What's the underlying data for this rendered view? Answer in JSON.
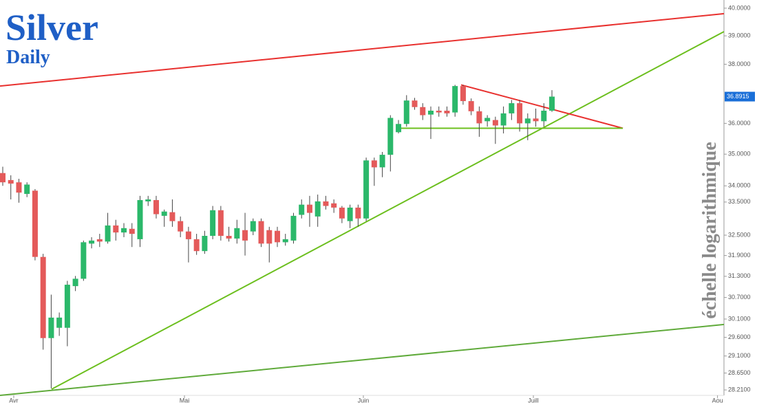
{
  "chart_data": {
    "type": "candlestick",
    "title": "Silver",
    "subtitle": "Daily",
    "annotation": "échelle logarithmique",
    "log_scale": true,
    "up_color": "#2bb86a",
    "down_color": "#e45a5a",
    "x": [
      0,
      1,
      2,
      3,
      4,
      5,
      6,
      7,
      8,
      9,
      10,
      11,
      12,
      13,
      14,
      15,
      16,
      17,
      18,
      19,
      20,
      21,
      22,
      23,
      24,
      25,
      26,
      27,
      28,
      29,
      30,
      31,
      32,
      33,
      34,
      35,
      36,
      37,
      38,
      39,
      40,
      41,
      42,
      43,
      44,
      45,
      46,
      47,
      48,
      49,
      50,
      51,
      52,
      53,
      54,
      55,
      56,
      57,
      58,
      59,
      60,
      61,
      62,
      63,
      64,
      65,
      66,
      67,
      68
    ],
    "open": [
      34.4,
      34.18,
      34.11,
      33.75,
      33.85,
      31.86,
      29.58,
      29.86,
      29.86,
      31.02,
      31.23,
      32.25,
      32.38,
      32.31,
      32.79,
      32.58,
      32.69,
      32.38,
      33.52,
      33.56,
      33.08,
      33.19,
      32.92,
      32.61,
      32.38,
      32.03,
      32.48,
      33.25,
      32.48,
      32.4,
      32.65,
      32.61,
      32.92,
      32.65,
      32.63,
      32.29,
      32.34,
      33.11,
      33.42,
      33.06,
      33.52,
      33.46,
      33.33,
      32.92,
      33.33,
      33.0,
      34.8,
      34.58,
      34.98,
      35.71,
      35.98,
      36.76,
      36.54,
      36.29,
      36.42,
      36.42,
      36.36,
      37.25,
      36.74,
      36.4,
      36.07,
      36.11,
      35.93,
      36.33,
      36.67,
      36.0,
      36.16,
      36.07,
      36.42
    ],
    "high": [
      34.6,
      34.33,
      34.22,
      34.11,
      33.9,
      31.95,
      30.78,
      30.28,
      31.17,
      31.31,
      32.34,
      32.44,
      32.54,
      33.17,
      32.96,
      32.86,
      32.86,
      33.69,
      33.69,
      33.69,
      33.27,
      33.58,
      33.06,
      32.75,
      32.54,
      32.63,
      33.38,
      33.38,
      32.75,
      32.96,
      33.17,
      33.0,
      33.0,
      32.75,
      32.75,
      32.54,
      33.17,
      33.58,
      33.69,
      33.73,
      33.69,
      33.58,
      33.38,
      33.42,
      33.42,
      34.89,
      34.89,
      35.07,
      36.27,
      36.11,
      36.94,
      36.85,
      36.67,
      36.56,
      36.56,
      36.56,
      37.29,
      37.29,
      36.83,
      36.56,
      36.27,
      36.22,
      36.56,
      36.78,
      36.78,
      36.33,
      36.49,
      36.67,
      37.11
    ],
    "low": [
      34.0,
      33.58,
      33.48,
      33.65,
      31.76,
      29.27,
      28.25,
      29.64,
      29.36,
      30.88,
      31.17,
      32.11,
      32.15,
      32.25,
      32.34,
      32.44,
      32.15,
      32.15,
      33.38,
      33.0,
      32.75,
      32.75,
      32.44,
      31.7,
      31.92,
      31.95,
      32.38,
      32.34,
      32.31,
      32.25,
      31.9,
      32.5,
      32.15,
      31.7,
      32.15,
      32.19,
      32.25,
      33.0,
      32.75,
      32.75,
      33.27,
      33.17,
      32.86,
      32.71,
      32.75,
      32.92,
      34.0,
      34.27,
      34.45,
      35.67,
      35.89,
      36.45,
      36.11,
      35.49,
      36.22,
      36.22,
      36.22,
      36.62,
      36.27,
      35.56,
      35.89,
      35.33,
      35.67,
      36.11,
      35.73,
      35.45,
      35.89,
      35.89,
      36.38
    ],
    "close": [
      34.11,
      34.07,
      33.79,
      34.04,
      31.86,
      29.58,
      30.14,
      30.14,
      31.06,
      31.23,
      32.29,
      32.34,
      32.31,
      32.79,
      32.58,
      32.71,
      32.54,
      33.56,
      33.58,
      33.13,
      33.21,
      32.92,
      32.61,
      32.38,
      32.03,
      32.48,
      33.25,
      32.48,
      32.4,
      32.71,
      32.34,
      32.92,
      32.25,
      32.25,
      32.29,
      32.38,
      33.08,
      33.42,
      33.17,
      33.52,
      33.38,
      33.33,
      33.0,
      33.33,
      33.0,
      34.8,
      34.58,
      34.98,
      36.18,
      35.98,
      36.76,
      36.54,
      36.27,
      36.42,
      36.36,
      36.33,
      37.25,
      36.74,
      36.4,
      36.0,
      36.18,
      35.93,
      36.33,
      36.67,
      36.0,
      36.16,
      36.07,
      36.42,
      36.8915
    ],
    "last_price": 36.8915,
    "xlim": [
      -0.34,
      89.3
    ],
    "xticks": [
      {
        "value": 1.36,
        "label": "Avr"
      },
      {
        "value": 22.5,
        "label": "Mai"
      },
      {
        "value": 44.65,
        "label": "Juin"
      },
      {
        "value": 65.7,
        "label": "Juill"
      },
      {
        "value": 88.5,
        "label": "Aou"
      }
    ],
    "ylim": [
      28.07,
      40.3
    ],
    "yticks": [
      {
        "value": 40,
        "label": "40.0000"
      },
      {
        "value": 39,
        "label": "39.0000"
      },
      {
        "value": 38,
        "label": "38.0000"
      },
      {
        "value": 36,
        "label": "36.0000"
      },
      {
        "value": 35,
        "label": "35.0000"
      },
      {
        "value": 34,
        "label": "34.0000"
      },
      {
        "value": 33.5,
        "label": "33.5000"
      },
      {
        "value": 32.5,
        "label": "32.5000"
      },
      {
        "value": 31.9,
        "label": "31.9000"
      },
      {
        "value": 31.3,
        "label": "31.3000"
      },
      {
        "value": 30.7,
        "label": "30.7000"
      },
      {
        "value": 30.1,
        "label": "30.1000"
      },
      {
        "value": 29.6,
        "label": "29.6000"
      },
      {
        "value": 29.1,
        "label": "29.1000"
      },
      {
        "value": 28.65,
        "label": "28.6500"
      },
      {
        "value": 28.21,
        "label": "28.2100"
      }
    ],
    "trendlines": [
      {
        "color": "#e8302e",
        "x": [
          -0.34,
          89.3
        ],
        "y": [
          37.25,
          39.8
        ]
      },
      {
        "color": "#6cbf1e",
        "x": [
          6.05,
          89.3
        ],
        "y": [
          28.23,
          39.15
        ]
      },
      {
        "color": "#5faa3a",
        "x": [
          -0.34,
          89.3
        ],
        "y": [
          28.07,
          29.95
        ]
      },
      {
        "color": "#e8302e",
        "x": [
          56.75,
          76.78
        ],
        "y": [
          37.29,
          35.84
        ]
      },
      {
        "color": "#6cbf1e",
        "x": [
          48.9,
          76.78
        ],
        "y": [
          35.84,
          35.84
        ]
      }
    ]
  }
}
